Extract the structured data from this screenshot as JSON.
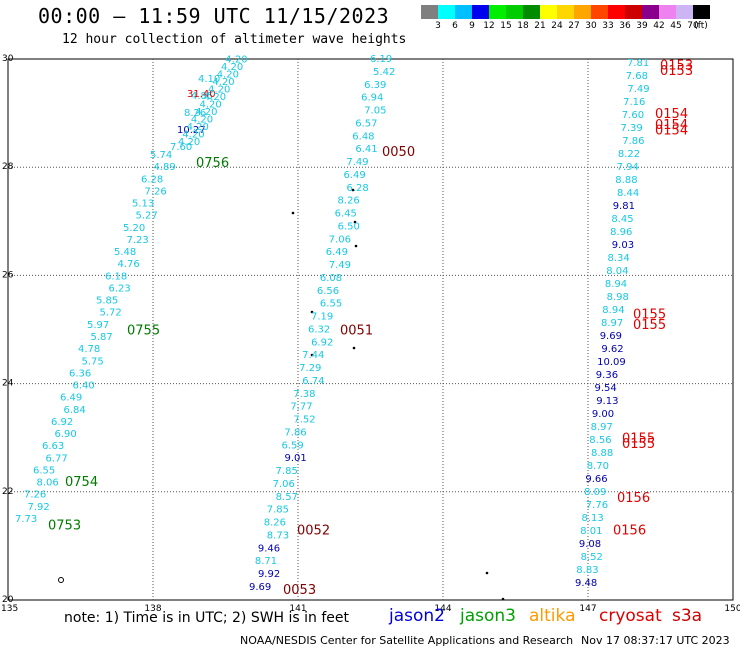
{
  "title": "00:00 – 11:59 UTC 11/15/2023",
  "subtitle": "12 hour collection of altimeter wave heights",
  "scale": {
    "labels": [
      "3",
      "6",
      "9",
      "12",
      "15",
      "18",
      "21",
      "24",
      "27",
      "30",
      "33",
      "36",
      "39",
      "42",
      "45",
      "70",
      "(ft)"
    ],
    "colors": [
      "#7f7f7f",
      "#00ffff",
      "#00bfff",
      "#0000ee",
      "#00ee00",
      "#00cc00",
      "#008b00",
      "#ffff00",
      "#ffd700",
      "#ffa500",
      "#ff4500",
      "#ff0000",
      "#cd0000",
      "#8b008b",
      "#ee82ee",
      "#cdb5f5",
      "#000000"
    ]
  },
  "note": "note: 1) Time is in UTC; 2) SWH is in feet",
  "satellites": [
    {
      "name": "jason2",
      "color": "#0000dd"
    },
    {
      "name": "jason3",
      "color": "#00a000"
    },
    {
      "name": "altika",
      "color": "#ff9900"
    },
    {
      "name": "cryosat",
      "color": "#dd0000"
    },
    {
      "name": "s3a",
      "color": "#cc0000"
    }
  ],
  "footer_left": "NOAA/NESDIS Center for Satellite Applications and Research",
  "footer_right": "Nov 17 08:37:17 UTC 2023",
  "chart_data": {
    "type": "scatter",
    "xlabel": "",
    "ylabel": "",
    "xlim": [
      135,
      150
    ],
    "ylim": [
      20,
      30
    ],
    "x_ticks": [
      "135",
      "138",
      "141",
      "144",
      "147",
      "150"
    ],
    "y_ticks": [
      "20",
      "22",
      "24",
      "26",
      "28",
      "30"
    ],
    "grid": true,
    "tracks": [
      {
        "series": "jason3",
        "pass_times": [
          {
            "time": "0753",
            "lat": 21.4
          },
          {
            "time": "0754",
            "lat": 22.2
          },
          {
            "time": "0755",
            "lat": 25.0
          },
          {
            "time": "0756",
            "lat": 28.1
          }
        ],
        "labels": [
          "7.73",
          "7.92",
          "7.26",
          "8.06",
          "6.55",
          "6.77",
          "6.63",
          "6.90",
          "6.92",
          "6.84",
          "6.49",
          "6.40",
          "6.36",
          "5.75",
          "4.78",
          "5.87",
          "5.97",
          "5.72",
          "5.85",
          "6.23",
          "6.18",
          "4.76",
          "5.48",
          "7.23",
          "5.20",
          "5.27",
          "5.13",
          "7.26",
          "6.28",
          "4.89",
          "5.74",
          "7.60",
          "10.27",
          "8.26",
          "4.85",
          "4.10",
          "31.40"
        ]
      },
      {
        "series": "jason2",
        "pass_times": [
          {
            "time": "0053",
            "lat": 20.2
          },
          {
            "time": "0052",
            "lat": 21.3
          },
          {
            "time": "0051",
            "lat": 25.0
          },
          {
            "time": "0050",
            "lat": 28.3
          }
        ],
        "labels": [
          "9.69",
          "9.92",
          "8.71",
          "9.46",
          "8.73",
          "8.26",
          "7.85",
          "8.57",
          "7.06",
          "7.85",
          "9.01",
          "6.59",
          "7.86",
          "7.52",
          "7.77",
          "7.38",
          "6.74",
          "7.29",
          "7.44",
          "6.92",
          "6.32",
          "7.19",
          "6.55",
          "6.56",
          "6.08",
          "7.49",
          "6.49",
          "7.06",
          "6.50",
          "6.45",
          "8.26",
          "6.28",
          "6.49",
          "7.49",
          "6.41",
          "6.48",
          "6.57",
          "7.05",
          "6.94",
          "6.39",
          "5.42",
          "6.19"
        ]
      },
      {
        "series": "s3a",
        "pass_times": [
          {
            "time": "0156",
            "lat": 21.3
          },
          {
            "time": "0156",
            "lat": 21.9
          },
          {
            "time": "0155",
            "lat": 22.9
          },
          {
            "time": "0155",
            "lat": 23.0
          },
          {
            "time": "0155",
            "lat": 25.1
          },
          {
            "time": "0155",
            "lat": 25.3
          },
          {
            "time": "0154",
            "lat": 28.7
          },
          {
            "time": "0154",
            "lat": 28.8
          },
          {
            "time": "0154",
            "lat": 29.0
          },
          {
            "time": "0153",
            "lat": 29.9
          },
          {
            "time": "0153",
            "lat": 29.8
          }
        ],
        "labels": [
          "9.48",
          "8.83",
          "8.52",
          "9.08",
          "8.01",
          "8.13",
          "7.76",
          "8.09",
          "9.66",
          "8.70",
          "8.88",
          "8.56",
          "8.97",
          "9.00",
          "9.13",
          "9.54",
          "9.36",
          "10.09",
          "9.62",
          "9.69",
          "8.97",
          "8.94",
          "8.98",
          "8.94",
          "8.04",
          "8.34",
          "9.03",
          "8.96",
          "8.45",
          "9.81",
          "8.44",
          "8.88",
          "7.94",
          "8.22",
          "7.86",
          "7.39",
          "7.60",
          "7.16",
          "7.49",
          "7.68",
          "7.81"
        ]
      }
    ]
  }
}
